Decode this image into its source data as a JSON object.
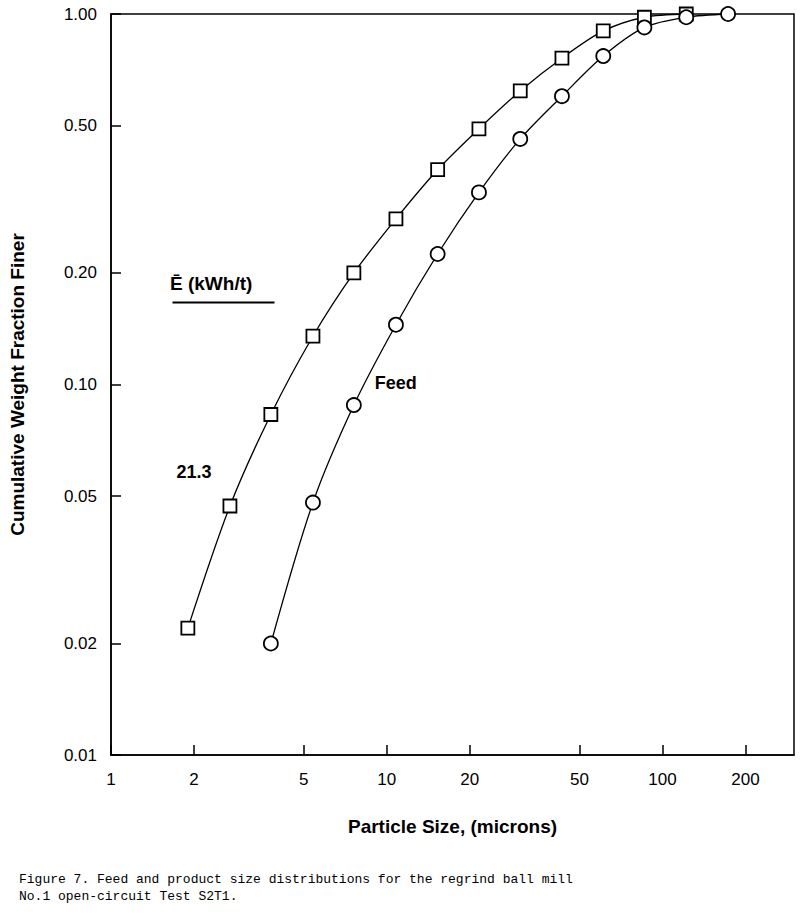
{
  "chart_data": {
    "type": "line",
    "title": "Figure 7. Feed and product size distributions for the regrind ball mill\nNo.1 open-circuit Test S2T1.",
    "x_label": "Particle Size, (microns)",
    "y_label": "Cumulative Weight Fraction Finer",
    "annotations": [
      {
        "text": "Ē (kWh/t)"
      }
    ],
    "log": true,
    "grid": false,
    "xlim": [
      1,
      300
    ],
    "xticks": [
      1,
      2,
      5,
      10,
      20,
      50,
      100,
      200
    ],
    "ylim": [
      0.01,
      1
    ],
    "yticks": [
      0.01,
      0.02,
      0.05,
      {
        "value": 0.1,
        "label": "0.10"
      },
      {
        "value": 0.2,
        "label": "0.20"
      },
      {
        "value": 0.5,
        "label": "0.50"
      },
      {
        "value": 1,
        "label": "1.00"
      }
    ],
    "series": [
      {
        "name": "21.3",
        "color": "#000000",
        "marker": "square",
        "line_style": "solid",
        "x": [
          1.9,
          2.7,
          3.8,
          5.4,
          7.6,
          10.8,
          15.3,
          21.6,
          30.5,
          43.2,
          61,
          86,
          122
        ],
        "values": [
          0.022,
          0.047,
          0.083,
          0.135,
          0.2,
          0.28,
          0.38,
          0.49,
          0.62,
          0.76,
          0.9,
          0.98,
          1.0
        ]
      },
      {
        "name": "Feed",
        "color": "#000000",
        "marker": "circle",
        "line_style": "solid",
        "x": [
          3.8,
          5.4,
          7.6,
          10.8,
          15.3,
          21.6,
          30.5,
          43.2,
          61,
          86,
          122,
          173
        ],
        "values": [
          0.02,
          0.048,
          0.088,
          0.145,
          0.225,
          0.33,
          0.46,
          0.6,
          0.77,
          0.92,
          0.98,
          1.0
        ]
      }
    ]
  }
}
